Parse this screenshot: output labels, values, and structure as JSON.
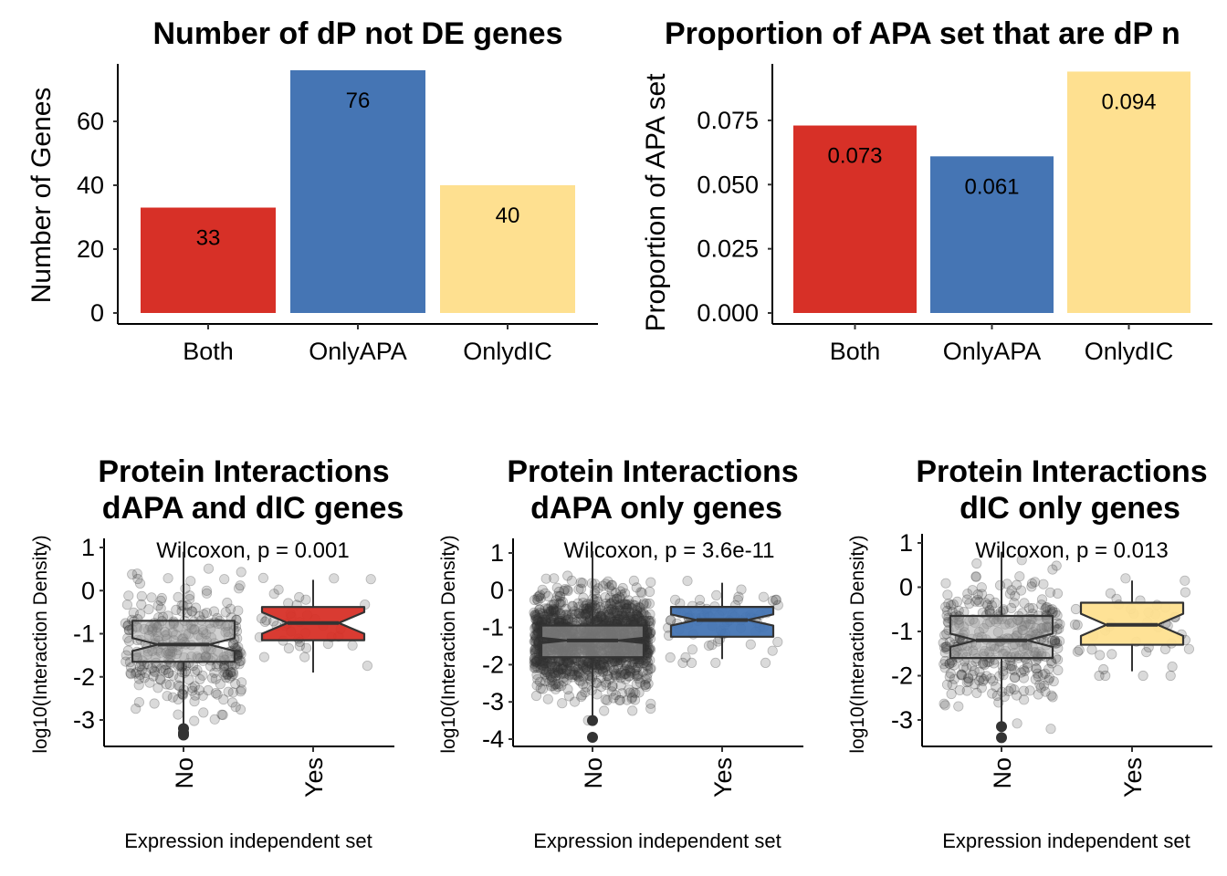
{
  "colors": {
    "Both": "#D73027",
    "OnlyAPA": "#4575B4",
    "OnlydIC": "#FEE090",
    "No": "#AAAAAA",
    "point": "#333333"
  },
  "chart_data": [
    {
      "type": "bar",
      "title": "Number of dP not DE genes",
      "ylabel": "Number of Genes",
      "xlabel": "",
      "categories": [
        "Both",
        "OnlyAPA",
        "OnlydIC"
      ],
      "values": [
        33,
        76,
        40
      ],
      "data_labels": [
        "33",
        "76",
        "40"
      ],
      "ylim": [
        0,
        78
      ],
      "yticks": [
        0,
        20,
        40,
        60
      ],
      "ytick_labels": [
        "0",
        "20",
        "40",
        "60"
      ],
      "grid": false,
      "legend": "none"
    },
    {
      "type": "bar",
      "title": "Proportion of APA set that are dP n",
      "ylabel": "Proportion of APA set",
      "xlabel": "",
      "categories": [
        "Both",
        "OnlyAPA",
        "OnlydIC"
      ],
      "values": [
        0.073,
        0.061,
        0.094
      ],
      "data_labels": [
        "0.073",
        "0.061",
        "0.094"
      ],
      "ylim": [
        0,
        0.097
      ],
      "yticks": [
        0,
        0.025,
        0.05,
        0.075
      ],
      "ytick_labels": [
        "0.000",
        "0.025",
        "0.050",
        "0.075"
      ],
      "grid": false,
      "legend": "none"
    },
    {
      "type": "box",
      "title_lines": [
        "Protein Interactions",
        "dAPA and dIC genes"
      ],
      "ylabel": "log10(Interaction Density)",
      "xlabel": "Expression independent set",
      "annotation": "Wilcoxon, p = 0.001",
      "categories": [
        "No",
        "Yes"
      ],
      "yticks": [
        -3,
        -2,
        -1,
        0,
        1
      ],
      "ytick_labels": [
        "-3",
        "-2",
        "-1",
        "0",
        "1"
      ],
      "ylim": [
        -3.6,
        1.15
      ],
      "boxes": [
        {
          "group": "No",
          "q1": -1.65,
          "median": -1.25,
          "q3": -0.7,
          "whisker_low": -3.1,
          "whisker_high": 0.9,
          "notch_low": -1.4,
          "notch_high": -1.1,
          "outliers": [
            -3.2,
            -3.3,
            -3.35
          ],
          "n_points": 330,
          "fill": "No"
        },
        {
          "group": "Yes",
          "q1": -1.15,
          "median": -0.75,
          "q3": -0.38,
          "whisker_low": -1.9,
          "whisker_high": 0.25,
          "notch_low": -1.0,
          "notch_high": -0.5,
          "outliers": [],
          "n_points": 40,
          "fill": "Both"
        }
      ],
      "grid": false,
      "legend": "none"
    },
    {
      "type": "box",
      "title_lines": [
        "Protein Interactions",
        "dAPA only genes"
      ],
      "ylabel": "log10(Interaction Density)",
      "xlabel": "Expression independent set",
      "annotation": "Wilcoxon, p = 3.6e-11",
      "categories": [
        "No",
        "Yes"
      ],
      "yticks": [
        -4,
        -3,
        -2,
        -1,
        0,
        1
      ],
      "ytick_labels": [
        "-4",
        "-3",
        "-2",
        "-1",
        "0",
        "1"
      ],
      "ylim": [
        -4.2,
        1.35
      ],
      "boxes": [
        {
          "group": "No",
          "q1": -1.8,
          "median": -1.35,
          "q3": -0.95,
          "whisker_low": -3.4,
          "whisker_high": 1.05,
          "notch_low": -1.42,
          "notch_high": -1.28,
          "outliers": [
            -3.5,
            -3.95
          ],
          "n_points": 1400,
          "fill": "No"
        },
        {
          "group": "Yes",
          "q1": -1.25,
          "median": -0.8,
          "q3": -0.45,
          "whisker_low": -1.85,
          "whisker_high": 0.2,
          "notch_low": -0.95,
          "notch_high": -0.65,
          "outliers": [],
          "n_points": 75,
          "fill": "OnlyAPA"
        }
      ],
      "grid": false,
      "legend": "none"
    },
    {
      "type": "box",
      "title_lines": [
        "Protein Interactions",
        "dIC only genes"
      ],
      "ylabel": "log10(Interaction Density)",
      "xlabel": "Expression independent set",
      "annotation": "Wilcoxon, p = 0.013",
      "categories": [
        "No",
        "Yes"
      ],
      "yticks": [
        -3,
        -2,
        -1,
        0,
        1
      ],
      "ytick_labels": [
        "-3",
        "-2",
        "-1",
        "0",
        "1"
      ],
      "ylim": [
        -3.6,
        1.1
      ],
      "boxes": [
        {
          "group": "No",
          "q1": -1.6,
          "median": -1.2,
          "q3": -0.65,
          "whisker_low": -3.1,
          "whisker_high": 0.8,
          "notch_low": -1.35,
          "notch_high": -1.05,
          "outliers": [
            -3.15,
            -3.4
          ],
          "n_points": 360,
          "fill": "No"
        },
        {
          "group": "Yes",
          "q1": -1.3,
          "median": -0.85,
          "q3": -0.35,
          "whisker_low": -1.9,
          "whisker_high": 0.15,
          "notch_low": -1.1,
          "notch_high": -0.6,
          "outliers": [],
          "n_points": 45,
          "fill": "OnlydIC"
        }
      ],
      "grid": false,
      "legend": "none"
    }
  ]
}
